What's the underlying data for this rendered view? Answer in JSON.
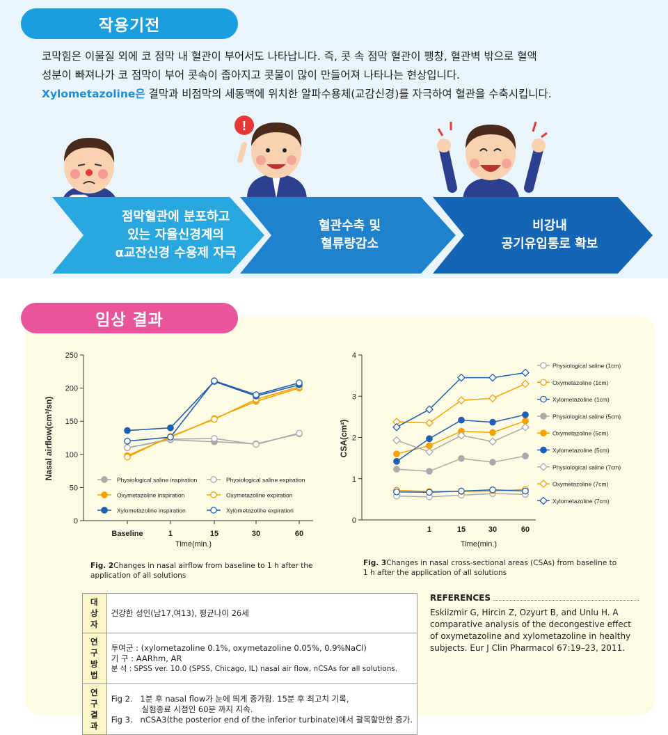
{
  "mechanism": {
    "title": "작용기전",
    "para1": "코막힘은 이물질 외에 코 점막 내 혈관이 부어서도 나타납니다. 즉, 콧 속 점막 혈관이 팽창, 혈관벽 밖으로 혈액",
    "para1b": "성분이 빠져나가 코 점막이 부어 콧속이 좁아지고 콧물이 많이 만들어져 나타나는 현상입니다.",
    "para2_highlight": "Xylometazoline은",
    "para2_rest": " 결막과 비점막의 세동맥에 위치한 알파수용체(교감신경)를 자극하여 혈관을 수축시킵니다.",
    "steps": [
      {
        "lines": [
          "점막혈관에 분포하고",
          "있는 자율신경계의",
          "α교잔신경 수용제 자극"
        ]
      },
      {
        "lines": [
          "혈관수축 및",
          "혈류량감소"
        ]
      },
      {
        "lines": [
          "비강내",
          "공기유입통로 확보"
        ]
      }
    ]
  },
  "results": {
    "title": "임상 결과"
  },
  "chart_data": [
    {
      "type": "line",
      "x": [
        "Baseline",
        "1",
        "15",
        "30",
        "60"
      ],
      "ylabel": "Nasal airflow(cm³/sn)",
      "xlabel": "Time(min.)",
      "ylim": [
        0,
        250
      ],
      "yticks": [
        "0",
        "50",
        "100",
        "150",
        "200",
        "250"
      ],
      "series": [
        {
          "name": "Physiological saline inspiration",
          "color": "#aaaaaa",
          "marker": "filled",
          "values": [
            110,
            122,
            119,
            116,
            131
          ]
        },
        {
          "name": "Physiological saline expiration",
          "color": "#aaaaaa",
          "marker": "open",
          "values": [
            110,
            123,
            124,
            115,
            132
          ]
        },
        {
          "name": "Oxymetazoline inspiration",
          "color": "#f5a100",
          "marker": "filled",
          "values": [
            98,
            126,
            154,
            180,
            200
          ]
        },
        {
          "name": "Oxymetazoline expiration",
          "color": "#f5a100",
          "marker": "open",
          "values": [
            96,
            127,
            153,
            183,
            202
          ]
        },
        {
          "name": "Xylometazoline inspiration",
          "color": "#1e5fb4",
          "marker": "filled",
          "values": [
            136,
            140,
            210,
            188,
            205
          ]
        },
        {
          "name": "Xylometazoline expiration",
          "color": "#1e5fb4",
          "marker": "open",
          "values": [
            120,
            126,
            211,
            190,
            208
          ]
        }
      ],
      "caption_label": "Fig.  2",
      "caption": "Changes in nasal airflow from baseline to 1 h after the application of all solutions"
    },
    {
      "type": "line",
      "x": [
        "",
        "1",
        "15",
        "30",
        "60"
      ],
      "ylabel": "CSA(cm²)",
      "xlabel": "Time(min.)",
      "ylim": [
        0,
        4
      ],
      "yticks": [
        "0",
        "1",
        "2",
        "3",
        "4"
      ],
      "series": [
        {
          "name": "Physiological saline (1cm)",
          "color": "#aaaaaa",
          "marker": "circle-open",
          "values": [
            0.58,
            0.56,
            0.6,
            0.64,
            0.62
          ]
        },
        {
          "name": "Oxymetazoline (1cm)",
          "color": "#f5a100",
          "marker": "circle-open",
          "values": [
            0.72,
            0.69,
            0.69,
            0.7,
            0.74
          ]
        },
        {
          "name": "Xylometazoline (1cm)",
          "color": "#1e5fb4",
          "marker": "circle-open",
          "values": [
            0.68,
            0.67,
            0.7,
            0.73,
            0.7
          ]
        },
        {
          "name": "Physiological saline (5cm)",
          "color": "#aaaaaa",
          "marker": "circle-filled",
          "values": [
            1.23,
            1.18,
            1.49,
            1.4,
            1.55
          ]
        },
        {
          "name": "Oxymetazoline (5cm)",
          "color": "#f5a100",
          "marker": "circle-filled",
          "values": [
            1.6,
            1.8,
            2.15,
            2.12,
            2.4
          ]
        },
        {
          "name": "Xylometazoline (5cm)",
          "color": "#1e5fb4",
          "marker": "circle-filled",
          "values": [
            1.42,
            1.97,
            2.42,
            2.37,
            2.55
          ]
        },
        {
          "name": "Physiological saline (7cm)",
          "color": "#aaaaaa",
          "marker": "diamond-open",
          "values": [
            1.93,
            1.65,
            2.05,
            1.9,
            2.25
          ]
        },
        {
          "name": "Oxymetazoline (7cm)",
          "color": "#f5a100",
          "marker": "diamond-open",
          "values": [
            2.38,
            2.35,
            2.9,
            2.95,
            3.3
          ]
        },
        {
          "name": "Xylometazoline (7cm)",
          "color": "#1e5fb4",
          "marker": "diamond-open",
          "values": [
            2.25,
            2.68,
            3.45,
            3.45,
            3.57
          ]
        }
      ],
      "caption_label": "Fig.  3",
      "caption": "Changes in nasal cross-sectional areas (CSAs) from baseline to 1 h after the application of all solutions"
    }
  ],
  "study": {
    "subject_label": "대 상 자",
    "subject": "건강한 성인(남17,여13), 평균나이 26세",
    "method_label": "연구방법",
    "method_lines": [
      "투여군 : (xylometazoline 0.1%, oxymetazoline 0.05%, 0.9%NaCl)",
      "기   구 : AARhm,  AR",
      "분   석 : SPSS ver. 10.0  (SPSS, Chicago, IL) nasal air flow, nCSAs for all solutions."
    ],
    "result_label": "연구결과",
    "result_lines": [
      "Fig 2.   1분 후 nasal flow가 눈에 띄게 증가함. 15분 후 최고치 기록,",
      "            실험종료 시점인 60분 까지 지속.",
      "Fig 3.   nCSA3(the posterior end of the inferior turbinate)에서 괄목할만한 증가."
    ]
  },
  "references": {
    "title": "REFERENCES",
    "body": "Eskiizmir G, Hircin Z, Ozyurt B, and Unlu H. A comparative analysis of the decongestive effect of oxymetazoline and xylometazoline in healthy subjects. Eur J Clin Pharmacol 67:19–23, 2011."
  }
}
